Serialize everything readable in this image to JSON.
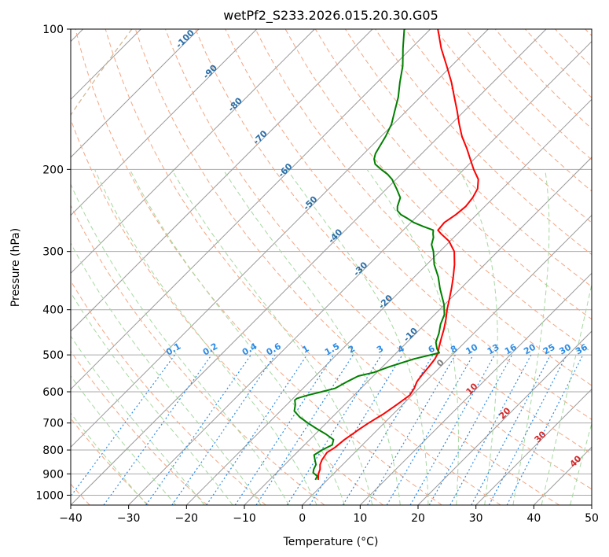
{
  "chart_data": {
    "type": "skew-t log-p sounding",
    "title": "wetPf2_S233.2026.015.20.30.G05",
    "xlabel": "Temperature (°C)",
    "ylabel": "Pressure (hPa)",
    "xlim": [
      -40,
      50
    ],
    "ylim_hpa": [
      1050,
      100
    ],
    "x_ticks": [
      -40,
      -30,
      -20,
      -10,
      0,
      10,
      20,
      30,
      40,
      50
    ],
    "y_ticks": [
      100,
      200,
      300,
      400,
      500,
      600,
      700,
      800,
      900,
      1000
    ],
    "grid": true,
    "series": [
      {
        "name": "temperature",
        "color": "#ff0000",
        "points": [
          [
            927,
            -1.6
          ],
          [
            900,
            -2.6
          ],
          [
            880,
            -3.1
          ],
          [
            860,
            -3.9
          ],
          [
            840,
            -4.4
          ],
          [
            810,
            -4.8
          ],
          [
            790,
            -4.3
          ],
          [
            760,
            -4.0
          ],
          [
            720,
            -3.2
          ],
          [
            700,
            -2.7
          ],
          [
            670,
            -1.7
          ],
          [
            640,
            -1.0
          ],
          [
            610,
            -0.4
          ],
          [
            590,
            -0.8
          ],
          [
            570,
            -1.5
          ],
          [
            550,
            -1.8
          ],
          [
            530,
            -2.0
          ],
          [
            510,
            -2.3
          ],
          [
            495,
            -2.8
          ],
          [
            480,
            -3.7
          ],
          [
            460,
            -4.8
          ],
          [
            440,
            -5.9
          ],
          [
            420,
            -7.2
          ],
          [
            400,
            -8.7
          ],
          [
            380,
            -10.1
          ],
          [
            360,
            -11.6
          ],
          [
            340,
            -13.3
          ],
          [
            320,
            -15.2
          ],
          [
            300,
            -17.5
          ],
          [
            285,
            -20.2
          ],
          [
            275,
            -22.8
          ],
          [
            270,
            -24.0
          ],
          [
            260,
            -24.2
          ],
          [
            250,
            -23.6
          ],
          [
            240,
            -23.3
          ],
          [
            230,
            -23.6
          ],
          [
            220,
            -24.3
          ],
          [
            210,
            -25.8
          ],
          [
            200,
            -28.3
          ],
          [
            190,
            -30.7
          ],
          [
            180,
            -33.2
          ],
          [
            170,
            -36.0
          ],
          [
            160,
            -38.6
          ],
          [
            150,
            -41.2
          ],
          [
            140,
            -44.1
          ],
          [
            130,
            -47.2
          ],
          [
            120,
            -50.8
          ],
          [
            110,
            -54.8
          ],
          [
            100,
            -58.7
          ]
        ]
      },
      {
        "name": "dewpoint",
        "color": "#008000",
        "points": [
          [
            927,
            -2.1
          ],
          [
            910,
            -2.4
          ],
          [
            895,
            -3.7
          ],
          [
            880,
            -4.2
          ],
          [
            860,
            -4.6
          ],
          [
            840,
            -5.6
          ],
          [
            820,
            -6.6
          ],
          [
            800,
            -6.1
          ],
          [
            780,
            -5.2
          ],
          [
            760,
            -5.9
          ],
          [
            740,
            -8.1
          ],
          [
            720,
            -10.7
          ],
          [
            700,
            -13.2
          ],
          [
            680,
            -15.6
          ],
          [
            660,
            -17.6
          ],
          [
            640,
            -18.5
          ],
          [
            625,
            -19.4
          ],
          [
            620,
            -19.3
          ],
          [
            610,
            -18.0
          ],
          [
            600,
            -16.2
          ],
          [
            590,
            -14.5
          ],
          [
            570,
            -13.5
          ],
          [
            555,
            -12.6
          ],
          [
            545,
            -10.5
          ],
          [
            530,
            -8.8
          ],
          [
            510,
            -5.9
          ],
          [
            495,
            -2.6
          ],
          [
            485,
            -3.7
          ],
          [
            470,
            -5.0
          ],
          [
            460,
            -5.5
          ],
          [
            450,
            -6.0
          ],
          [
            430,
            -7.3
          ],
          [
            410,
            -8.3
          ],
          [
            390,
            -10.1
          ],
          [
            360,
            -13.6
          ],
          [
            340,
            -15.9
          ],
          [
            320,
            -18.7
          ],
          [
            300,
            -21.1
          ],
          [
            290,
            -22.6
          ],
          [
            280,
            -23.5
          ],
          [
            275,
            -24.2
          ],
          [
            270,
            -24.8
          ],
          [
            265,
            -27.2
          ],
          [
            260,
            -29.5
          ],
          [
            255,
            -31.2
          ],
          [
            250,
            -33.1
          ],
          [
            245,
            -34.4
          ],
          [
            240,
            -35.1
          ],
          [
            230,
            -36.1
          ],
          [
            220,
            -38.3
          ],
          [
            210,
            -40.7
          ],
          [
            205,
            -42.3
          ],
          [
            200,
            -44.3
          ],
          [
            195,
            -46.2
          ],
          [
            190,
            -47.3
          ],
          [
            185,
            -48.0
          ],
          [
            180,
            -48.4
          ],
          [
            170,
            -49.2
          ],
          [
            160,
            -50.3
          ],
          [
            150,
            -52.0
          ],
          [
            140,
            -53.8
          ],
          [
            130,
            -56.1
          ],
          [
            120,
            -58.4
          ],
          [
            110,
            -61.4
          ],
          [
            100,
            -64.5
          ]
        ]
      }
    ],
    "dry_adiabats_theta_c": [
      -60,
      -50,
      -40,
      -30,
      -20,
      -10,
      0,
      10,
      20,
      30,
      40,
      50,
      60,
      70,
      80,
      90,
      100,
      110,
      120,
      130,
      140,
      150,
      160,
      170,
      180,
      190,
      200
    ],
    "moist_adiabats_start_c": [
      -30,
      -25,
      -20,
      -15,
      -10,
      -5,
      0,
      5,
      10,
      15,
      20,
      25,
      30,
      35,
      40,
      45
    ],
    "mixing_ratio_lines": [
      {
        "label": "0.1",
        "w": 0.1
      },
      {
        "label": "0.2",
        "w": 0.2
      },
      {
        "label": "0.4",
        "w": 0.4
      },
      {
        "label": "0.6",
        "w": 0.6
      },
      {
        "label": "1",
        "w": 1
      },
      {
        "label": "1.5",
        "w": 1.5
      },
      {
        "label": "2",
        "w": 2
      },
      {
        "label": "3",
        "w": 3
      },
      {
        "label": "4",
        "w": 4
      },
      {
        "label": "6",
        "w": 6
      },
      {
        "label": "8",
        "w": 8
      },
      {
        "label": "10",
        "w": 10
      },
      {
        "label": "13",
        "w": 13
      },
      {
        "label": "16",
        "w": 16
      },
      {
        "label": "20",
        "w": 20
      },
      {
        "label": "25",
        "w": 25
      },
      {
        "label": "30",
        "w": 30
      },
      {
        "label": "36",
        "w": 36
      }
    ],
    "wet_bulb_labels": [
      {
        "label": "-100",
        "value": -100
      },
      {
        "label": "-90",
        "value": -90
      },
      {
        "label": "-80",
        "value": -80
      },
      {
        "label": "-70",
        "value": -70
      },
      {
        "label": "-60",
        "value": -60
      },
      {
        "label": "-50",
        "value": -50
      },
      {
        "label": "-40",
        "value": -40
      },
      {
        "label": "-30",
        "value": -30
      },
      {
        "label": "-20",
        "value": -20
      },
      {
        "label": "-10",
        "value": -10
      }
    ],
    "wet_bulb_labels_warm": [
      {
        "label": "0",
        "value": 0
      },
      {
        "label": "10",
        "value": 10
      },
      {
        "label": "20",
        "value": 20
      },
      {
        "label": "30",
        "value": 30
      },
      {
        "label": "40",
        "value": 40
      }
    ],
    "colors": {
      "temperature": "#ff0000",
      "dewpoint": "#008000",
      "dry_adiabat": "#f4a582",
      "moist_adiabat": "#a6d8a0",
      "mixing_ratio": "#2b8ce6",
      "wet_bulb_cold": "#2b6fa8",
      "wet_bulb_warm": "#d62728",
      "wet_bulb_zero": "#808080",
      "isotherm": "#999999",
      "theta_e_ring": "#c8a880"
    }
  }
}
